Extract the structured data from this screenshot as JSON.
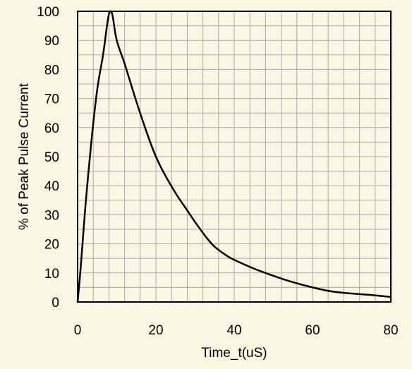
{
  "chart_data": {
    "type": "line",
    "title": "",
    "xlabel": "Time_t(uS)",
    "ylabel": "% of Peak Pulse Current",
    "xlim": [
      0,
      80
    ],
    "ylim": [
      0,
      100
    ],
    "x_ticks": [
      0,
      20,
      40,
      60,
      80
    ],
    "y_ticks": [
      0,
      10,
      20,
      30,
      40,
      50,
      60,
      70,
      80,
      90,
      100
    ],
    "x_tick_labels": [
      "0",
      "20",
      "40",
      "60",
      "80"
    ],
    "y_tick_labels": [
      "0",
      "10",
      "20",
      "30",
      "40",
      "50",
      "60",
      "70",
      "80",
      "90",
      "100"
    ],
    "x_minor_step": 4,
    "y_minor_step": 5,
    "grid": true,
    "series": [
      {
        "x": [
          0,
          0.8,
          2,
          3.5,
          5,
          6.5,
          7.5,
          8,
          8.5,
          9,
          10,
          12,
          15,
          18,
          20,
          22,
          25,
          28,
          30,
          33,
          35,
          38,
          40,
          45,
          50,
          55,
          60,
          65,
          70,
          75,
          80
        ],
        "y": [
          0,
          12,
          33,
          55,
          73,
          85,
          95,
          99,
          100,
          98,
          90,
          82,
          69,
          57,
          50,
          44.5,
          37.5,
          31.5,
          27.5,
          22,
          19,
          16,
          14.5,
          11.5,
          9,
          6.8,
          5,
          3.6,
          2.9,
          2.4,
          1.7
        ]
      }
    ],
    "colors": {
      "background": "#fdf5e4",
      "grid": "#a9a9a9",
      "line": "#000000"
    }
  }
}
